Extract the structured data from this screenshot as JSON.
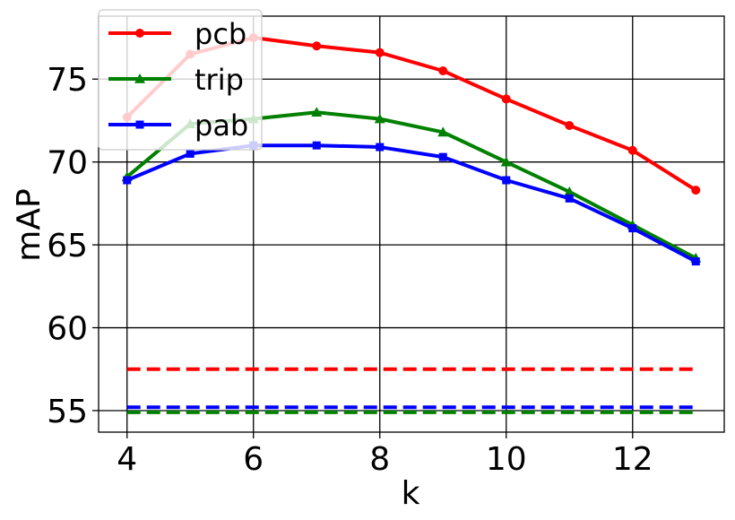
{
  "chart_data": {
    "type": "line",
    "title": "",
    "xlabel": "k",
    "ylabel": "mAP",
    "xlim": [
      3.55,
      13.45
    ],
    "ylim": [
      53.7,
      78.8
    ],
    "xticks": [
      4,
      6,
      8,
      10,
      12
    ],
    "yticks": [
      55,
      60,
      65,
      70,
      75
    ],
    "grid": true,
    "legend_position": "top-left",
    "x": [
      4,
      5,
      6,
      7,
      8,
      9,
      10,
      11,
      12,
      13
    ],
    "series": [
      {
        "name": "pcb",
        "color": "#ff0000",
        "marker": "circle",
        "values": [
          72.7,
          76.5,
          77.5,
          77.0,
          76.6,
          75.5,
          73.8,
          72.2,
          70.7,
          68.3
        ]
      },
      {
        "name": "trip",
        "color": "#008000",
        "marker": "triangle",
        "values": [
          69.1,
          72.3,
          72.6,
          73.0,
          72.6,
          71.8,
          70.0,
          68.2,
          66.2,
          64.2
        ]
      },
      {
        "name": "pab",
        "color": "#0000ff",
        "marker": "square",
        "values": [
          68.9,
          70.5,
          71.0,
          71.0,
          70.9,
          70.3,
          68.9,
          67.8,
          66.0,
          64.0
        ]
      }
    ],
    "baselines": [
      {
        "series": "pcb",
        "color": "#ff0000",
        "value": 57.5
      },
      {
        "series": "pab",
        "color": "#0000ff",
        "value": 55.2
      },
      {
        "series": "trip",
        "color": "#008000",
        "value": 54.9
      }
    ]
  }
}
